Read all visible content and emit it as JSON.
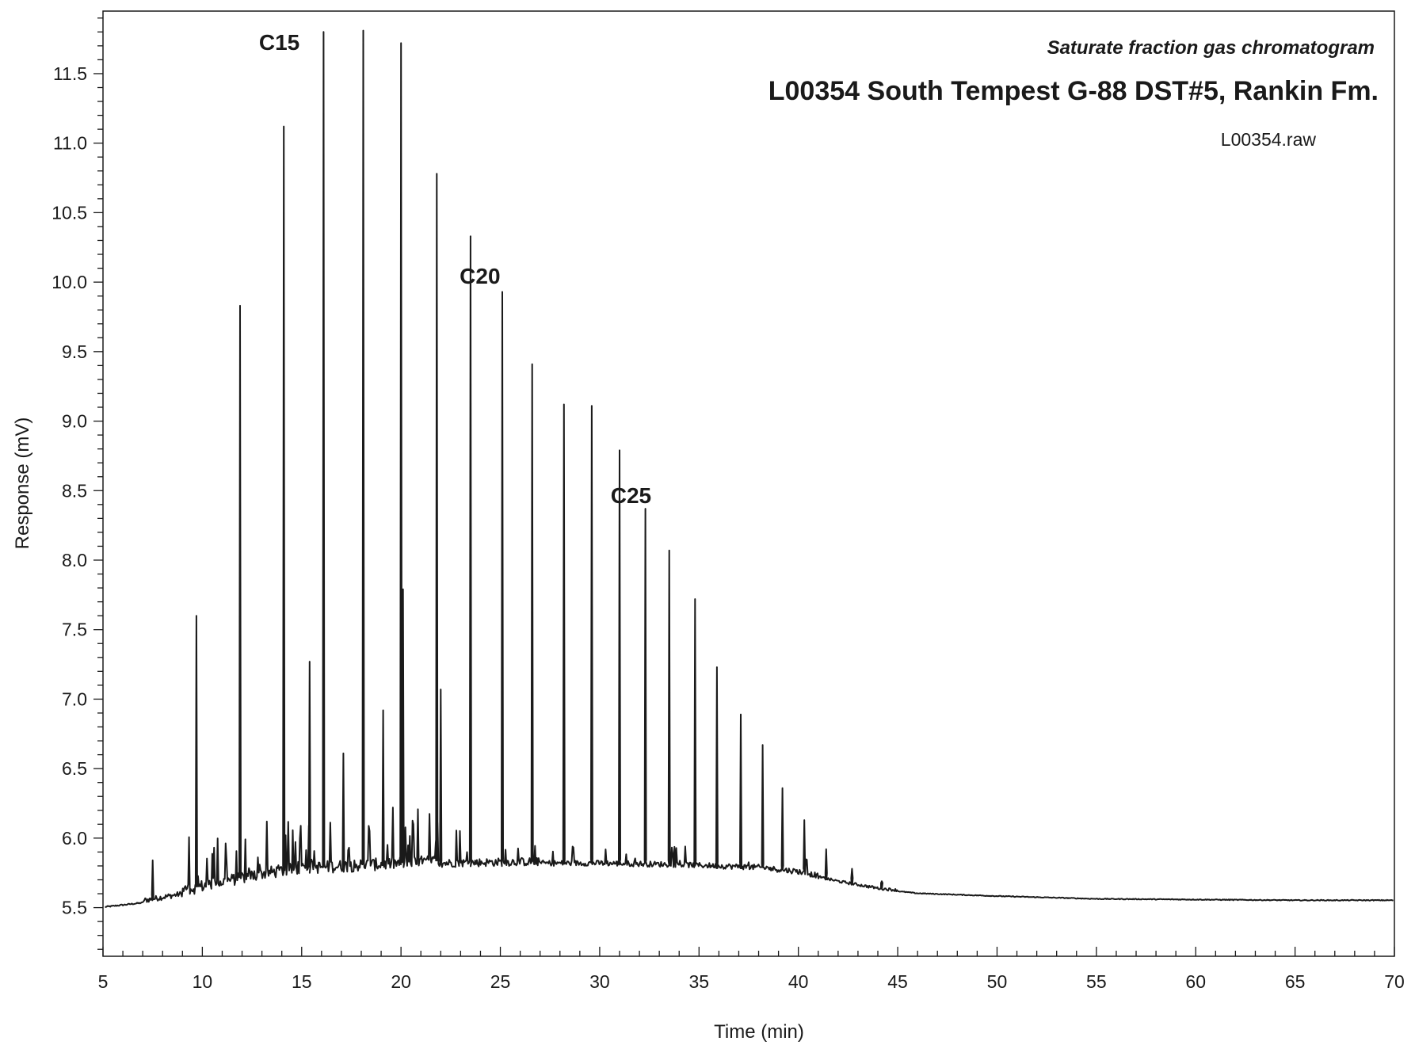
{
  "chart_data": {
    "type": "line",
    "subtitle": "Saturate fraction gas chromatogram",
    "title": "L00354  South Tempest G-88  DST#5,  Rankin Fm.",
    "file_label": "L00354.raw",
    "xlabel": "Time (min)",
    "ylabel": "Response (mV)",
    "xlim": [
      5,
      70
    ],
    "ylim": [
      5.15,
      11.95
    ],
    "x_ticks": [
      5,
      10,
      15,
      20,
      25,
      30,
      35,
      40,
      45,
      50,
      55,
      60,
      65,
      70
    ],
    "x_tick_labels": [
      "5",
      "10",
      "15",
      "20",
      "25",
      "30",
      "35",
      "40",
      "45",
      "50",
      "55",
      "60",
      "65",
      "70"
    ],
    "y_ticks": [
      5.5,
      6.0,
      6.5,
      7.0,
      7.5,
      8.0,
      8.5,
      9.0,
      9.5,
      10.0,
      10.5,
      11.0,
      11.5
    ],
    "y_tick_labels": [
      "5.5",
      "6.0",
      "6.5",
      "7.0",
      "7.5",
      "8.0",
      "8.5",
      "9.0",
      "9.5",
      "10.0",
      "10.5",
      "11.0",
      "11.5"
    ],
    "grid": false,
    "line_color": "#1a1a1a",
    "baseline": [
      [
        5.1,
        5.5
      ],
      [
        7,
        5.53
      ],
      [
        9,
        5.58
      ],
      [
        11,
        5.64
      ],
      [
        13,
        5.7
      ],
      [
        15,
        5.74
      ],
      [
        18,
        5.76
      ],
      [
        22,
        5.79
      ],
      [
        26,
        5.8
      ],
      [
        30,
        5.8
      ],
      [
        34,
        5.79
      ],
      [
        38,
        5.77
      ],
      [
        40,
        5.74
      ],
      [
        42,
        5.68
      ],
      [
        44,
        5.63
      ],
      [
        46,
        5.6
      ],
      [
        50,
        5.58
      ],
      [
        55,
        5.56
      ],
      [
        60,
        5.555
      ],
      [
        65,
        5.55
      ],
      [
        70,
        5.55
      ]
    ],
    "peaks": [
      {
        "x": 7.5,
        "y": 5.84
      },
      {
        "x": 9.7,
        "y": 7.6
      },
      {
        "x": 11.9,
        "y": 9.83
      },
      {
        "x": 14.1,
        "y": 11.12
      },
      {
        "x": 15.4,
        "y": 7.27
      },
      {
        "x": 16.1,
        "y": 11.8
      },
      {
        "x": 17.1,
        "y": 6.61
      },
      {
        "x": 18.1,
        "y": 11.81
      },
      {
        "x": 19.1,
        "y": 6.92
      },
      {
        "x": 20.0,
        "y": 11.72
      },
      {
        "x": 20.1,
        "y": 7.79
      },
      {
        "x": 21.8,
        "y": 10.78
      },
      {
        "x": 22.0,
        "y": 7.07
      },
      {
        "x": 23.5,
        "y": 10.33
      },
      {
        "x": 25.1,
        "y": 9.93
      },
      {
        "x": 26.6,
        "y": 9.41
      },
      {
        "x": 28.2,
        "y": 9.12
      },
      {
        "x": 29.6,
        "y": 9.11
      },
      {
        "x": 31.0,
        "y": 8.79
      },
      {
        "x": 32.3,
        "y": 8.37
      },
      {
        "x": 33.5,
        "y": 8.07
      },
      {
        "x": 34.8,
        "y": 7.72
      },
      {
        "x": 35.9,
        "y": 7.23
      },
      {
        "x": 37.1,
        "y": 6.89
      },
      {
        "x": 38.2,
        "y": 6.67
      },
      {
        "x": 39.2,
        "y": 6.36
      },
      {
        "x": 40.3,
        "y": 6.13
      },
      {
        "x": 41.4,
        "y": 5.92
      },
      {
        "x": 42.7,
        "y": 5.78
      },
      {
        "x": 44.2,
        "y": 5.69
      }
    ],
    "annotations": [
      {
        "text": "C15",
        "x": 14.9,
        "y": 11.67
      },
      {
        "text": "C20",
        "x": 25.0,
        "y": 9.99
      },
      {
        "text": "C25",
        "x": 32.6,
        "y": 8.41
      }
    ]
  }
}
